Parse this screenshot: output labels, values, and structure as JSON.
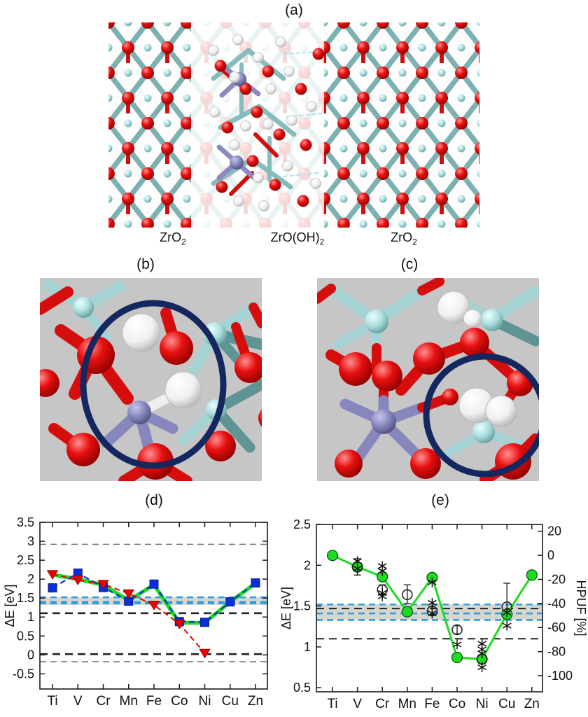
{
  "figure": {
    "panels": {
      "a": {
        "title": "(a)",
        "region_labels": [
          {
            "main": "ZrO",
            "sub": "2"
          },
          {
            "main": "ZrO(OH)",
            "sub": "2"
          },
          {
            "main": "ZrO",
            "sub": "2"
          }
        ]
      },
      "b": {
        "title": "(b)"
      },
      "c": {
        "title": "(c)"
      },
      "d": {
        "title": "(d)"
      },
      "e": {
        "title": "(e)"
      }
    }
  },
  "palette": {
    "oxygen_red": "#e01010",
    "hydrogen_white": "#f2f2f2",
    "zirconium_teal": "#a8d8d8",
    "dopant_purple": "#8484bc",
    "highlight_navy": "#14285f",
    "panel_bg_gray": "#c6c6c6",
    "series_green": "#1ddb1d",
    "series_blue": "#0a2fd6",
    "series_red": "#ec0000",
    "ref_blue": "#2e9fe0",
    "band_gray": "#d9d5cd"
  },
  "chart_data": [
    {
      "id": "d",
      "type": "line",
      "title": "(d)",
      "categories": [
        "Ti",
        "V",
        "Cr",
        "Mn",
        "Fe",
        "Co",
        "Ni",
        "Cu",
        "Zn"
      ],
      "xlabel": "",
      "ylabel": "ΔE [eV]",
      "ylim": [
        -0.9,
        3.5
      ],
      "yticks": [
        "3.5",
        "3",
        "2.5",
        "2",
        "1.5",
        "1",
        "0.5",
        "0",
        "-0.5"
      ],
      "grid": false,
      "legend": "none",
      "series": [
        {
          "name": "green-thick-line",
          "style": "solid",
          "color": "#1ddb1d",
          "width": 5.5,
          "marker": "none",
          "values": [
            2.12,
            2.0,
            1.85,
            1.44,
            1.85,
            0.85,
            0.85,
            1.4,
            1.89
          ]
        },
        {
          "name": "blue-squares-dashed",
          "style": "dashed",
          "color": "#0a2fd6",
          "width": 2.2,
          "dash": "8 5",
          "marker": "square",
          "values": [
            1.77,
            2.16,
            1.78,
            1.42,
            1.87,
            0.88,
            0.86,
            1.4,
            1.9
          ]
        },
        {
          "name": "red-triangles-dashed",
          "style": "dashed",
          "color": "#ec0000",
          "width": 2,
          "dash": "8 5",
          "marker": "triangle-down",
          "values": [
            2.13,
            1.98,
            1.87,
            1.62,
            1.32,
            0.82,
            0.05,
            null,
            null
          ]
        }
      ],
      "reference_lines": [
        {
          "y": 2.92,
          "color": "#777777",
          "width": 1.6,
          "dash": "9 6"
        },
        {
          "y": 1.52,
          "color": "#2e9fe0",
          "width": 2.6,
          "dash": "9 6"
        },
        {
          "y": 1.4,
          "color": "#2e9fe0",
          "width": 2.4,
          "dash": "9 6"
        },
        {
          "y": 1.36,
          "color": "#2e9fe0",
          "width": 2.4,
          "dash": "9 6"
        },
        {
          "y": 1.1,
          "color": "#222222",
          "width": 2.6,
          "dash": "11 7"
        },
        {
          "y": 0.02,
          "color": "#222222",
          "width": 2.6,
          "dash": "11 7"
        },
        {
          "y": -0.18,
          "color": "#777777",
          "width": 1.6,
          "dash": "9 6"
        }
      ],
      "band": {
        "from": 1.32,
        "to": 1.52,
        "color": "#d9d5cd"
      }
    },
    {
      "id": "e",
      "type": "line",
      "title": "(e)",
      "categories": [
        "Ti",
        "V",
        "Cr",
        "Mn",
        "Fe",
        "Co",
        "Ni",
        "Cu",
        "Zn"
      ],
      "xlabel": "",
      "ylabel": "ΔE [eV]",
      "ylim": [
        0.45,
        2.5
      ],
      "yticks": [
        "2.5",
        "2",
        "1.5",
        "1",
        "0.5"
      ],
      "grid": false,
      "legend": "none",
      "series": [
        {
          "name": "green-circles-line",
          "style": "solid",
          "color": "#1ddb1d",
          "width": 3,
          "marker": "circle",
          "values": [
            2.12,
            1.98,
            1.86,
            1.43,
            1.85,
            0.87,
            0.85,
            1.4,
            1.88
          ]
        },
        {
          "name": "open-circles-errorbars",
          "style": "none",
          "line": false,
          "color": "#222222",
          "marker": "open-circle",
          "values": [
            null,
            1.98,
            1.7,
            1.64,
            1.44,
            1.21,
            0.85,
            1.49,
            null
          ],
          "error_lo": [
            null,
            1.88,
            1.64,
            1.53,
            1.39,
            1.16,
            0.8,
            1.42,
            null
          ],
          "error_hi": [
            null,
            2.08,
            1.76,
            1.76,
            1.49,
            1.26,
            0.9,
            1.78,
            null
          ]
        },
        {
          "name": "asterisks",
          "style": "none",
          "line": false,
          "color": "#111111",
          "marker": "asterisk",
          "points": [
            [
              2,
              2.05
            ],
            [
              2,
              1.96
            ],
            [
              3,
              1.99
            ],
            [
              3,
              1.93
            ],
            [
              3,
              1.66
            ],
            [
              3,
              1.62
            ],
            [
              5,
              1.79
            ],
            [
              5,
              1.54
            ],
            [
              5,
              1.41
            ],
            [
              6,
              1.03
            ],
            [
              7,
              1.04
            ],
            [
              7,
              0.97
            ],
            [
              7,
              0.92
            ],
            [
              7,
              0.75
            ],
            [
              8,
              1.42
            ],
            [
              8,
              1.26
            ]
          ]
        }
      ],
      "reference_lines": [
        {
          "y": 1.52,
          "color": "#2e9fe0",
          "width": 2.6,
          "dash": "9 6"
        },
        {
          "y": 1.47,
          "color": "#222222",
          "width": 2.0,
          "dash": "11 7"
        },
        {
          "y": 1.41,
          "color": "#2e9fe0",
          "width": 2.6,
          "dash": "9 6"
        },
        {
          "y": 1.33,
          "color": "#2e9fe0",
          "width": 2.6,
          "dash": "9 6"
        },
        {
          "y": 1.1,
          "color": "#222222",
          "width": 2.0,
          "dash": "11 7"
        }
      ],
      "band": {
        "from": 1.33,
        "to": 1.52,
        "color": "#d9d5cd"
      },
      "right_axis": {
        "label": "HPUF [%]",
        "ticks": [
          20,
          0,
          -20,
          -40,
          -60,
          -80,
          -100
        ],
        "de_at_0": 2.122,
        "de_per_percent": 0.01475
      }
    }
  ]
}
